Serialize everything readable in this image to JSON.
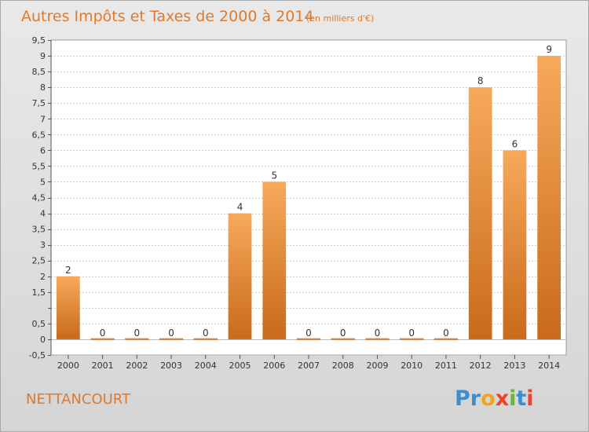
{
  "title": "Autres Impôts et Taxes de 2000 à 2014",
  "subtitle": "(en milliers d'€)",
  "commune": "NETTANCOURT",
  "logo": {
    "letters": [
      "P",
      "r",
      "o",
      "x",
      "i",
      "t",
      "i"
    ],
    "colors": [
      "#3b8fd0",
      "#3b8fd0",
      "#f2a51c",
      "#e8452c",
      "#6cb33f",
      "#3b8fd0",
      "#e8452c"
    ]
  },
  "colors": {
    "bar_light": "#f7a95a",
    "bar_dark": "#c96a1b",
    "title": "#e07a2a",
    "plot_bg": "#ffffff"
  },
  "chart_data": {
    "type": "bar",
    "title": "Autres Impôts et Taxes de 2000 à 2014",
    "subtitle": "(en milliers d'€)",
    "xlabel": "",
    "ylabel": "",
    "categories": [
      "2000",
      "2001",
      "2002",
      "2003",
      "2004",
      "2005",
      "2006",
      "2007",
      "2008",
      "2009",
      "2010",
      "2011",
      "2012",
      "2013",
      "2014"
    ],
    "values": [
      2,
      0,
      0,
      0,
      0,
      4,
      5,
      0,
      0,
      0,
      0,
      0,
      8,
      6,
      9
    ],
    "value_labels": [
      "2",
      "0",
      "0",
      "0",
      "0",
      "4",
      "5",
      "0",
      "0",
      "0",
      "0",
      "0",
      "8",
      "6",
      "9"
    ],
    "ylim": [
      -0.5,
      9.5
    ],
    "yticks": [
      -0.5,
      0,
      0.5,
      1,
      1.5,
      2,
      2.5,
      3,
      3.5,
      4,
      4.5,
      5,
      5.5,
      6,
      6.5,
      7,
      7.5,
      8,
      8.5,
      9,
      9.5
    ],
    "ytick_labels": [
      "-0,5",
      "0",
      "0,5",
      "",
      "1,5",
      "2",
      "2,5",
      "3",
      "3,5",
      "4",
      "4,5",
      "5",
      "5,5",
      "6",
      "6,5",
      "7",
      "7,5",
      "8",
      "8,5",
      "9",
      "9,5"
    ],
    "grid": true,
    "legend": "none"
  }
}
